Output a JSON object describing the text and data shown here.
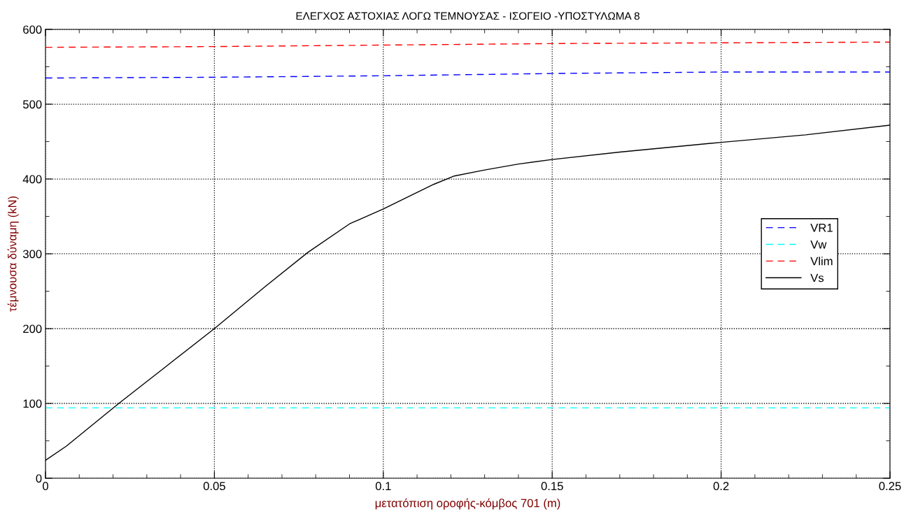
{
  "chart_data": {
    "type": "line",
    "title": "ΕΛΕΓΧΟΣ ΑΣΤΟΧΙΑΣ ΛΟΓΩ ΤΕΜΝΟΥΣΑΣ - ΙΣΟΓΕΙΟ -ΥΠΟΣΤΥΛΩΜΑ 8",
    "xlabel": "μετατόπιση οροφής-κόμβος 701 (m)",
    "ylabel": "τέμνουσα δύναμη (kN)",
    "xlim": [
      0,
      0.25
    ],
    "xticks": [
      0,
      0.05,
      0.1,
      0.15,
      0.2,
      0.25
    ],
    "ylim": [
      0,
      600
    ],
    "yticks": [
      0,
      100,
      200,
      300,
      400,
      500,
      600
    ],
    "grid": true,
    "legend": "right",
    "series": [
      {
        "name": "VR1",
        "color": "#0000ff",
        "line_style": "dashed",
        "x": [
          0,
          0.05,
          0.1,
          0.15,
          0.2,
          0.25
        ],
        "values": [
          535,
          536,
          538,
          541,
          543,
          543
        ]
      },
      {
        "name": "Vw",
        "color": "#00ffff",
        "line_style": "dashed",
        "x": [
          0,
          0.25
        ],
        "values": [
          94,
          94
        ]
      },
      {
        "name": "Vlim",
        "color": "#ff0000",
        "line_style": "dashed",
        "x": [
          0,
          0.05,
          0.1,
          0.15,
          0.2,
          0.25
        ],
        "values": [
          576,
          577,
          579,
          581,
          582,
          583
        ]
      },
      {
        "name": "Vs",
        "color": "#000000",
        "line_style": "solid",
        "x": [
          0,
          0.0062,
          0.0217,
          0.035,
          0.05,
          0.065,
          0.0777,
          0.09,
          0.1,
          0.115,
          0.121,
          0.13,
          0.14,
          0.15,
          0.17,
          0.2,
          0.225,
          0.25
        ],
        "values": [
          24,
          43,
          100,
          147,
          200,
          256,
          302,
          340,
          360,
          393,
          404,
          412,
          420,
          426,
          436,
          449,
          459,
          472
        ]
      }
    ]
  }
}
